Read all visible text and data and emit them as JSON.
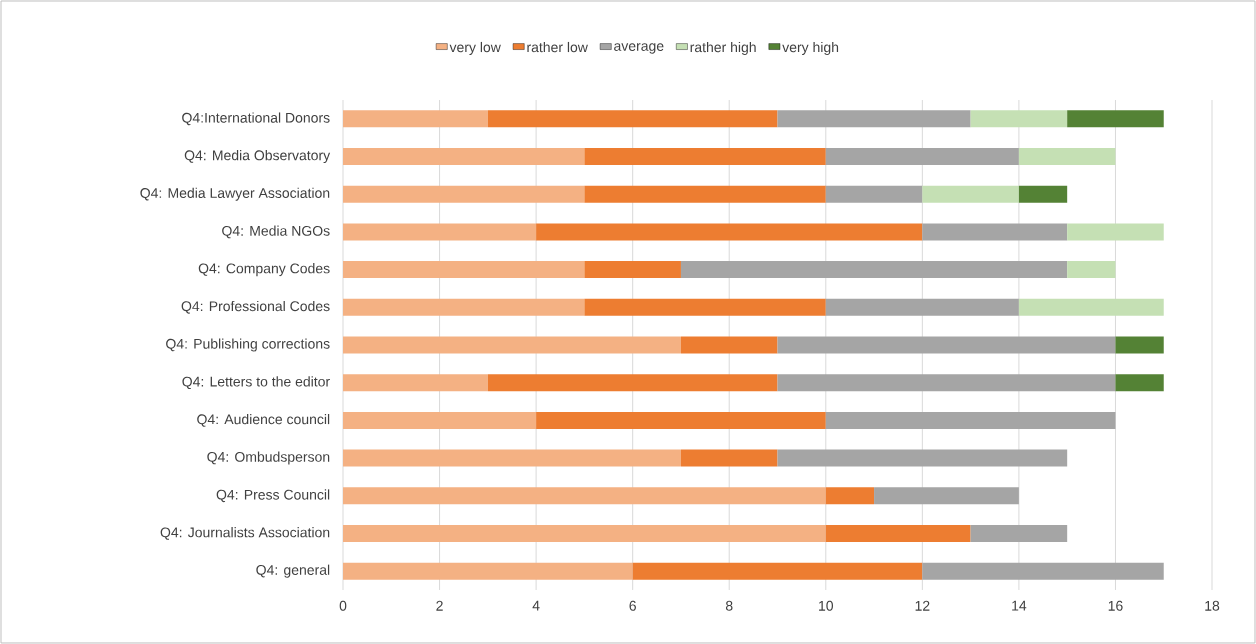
{
  "chart_data": {
    "type": "bar",
    "orientation": "horizontal",
    "stacked": true,
    "categories": [
      "Q4:International Donors",
      "Q4: Media Observatory",
      "Q4: Media Lawyer Association",
      "Q4: Media NGOs",
      "Q4: Company Codes",
      "Q4: Professional Codes",
      "Q4: Publishing corrections",
      "Q4: Letters to the editor",
      "Q4: Audience council",
      "Q4: Ombudsperson",
      "Q4: Press Council",
      "Q4: Journalists Association",
      "Q4: general"
    ],
    "series": [
      {
        "name": "very low",
        "color": "#f4b183",
        "values": [
          3,
          5,
          5,
          4,
          5,
          5,
          7,
          3,
          4,
          7,
          10,
          10,
          6
        ]
      },
      {
        "name": "rather low",
        "color": "#ed7d31",
        "values": [
          6,
          5,
          5,
          8,
          2,
          5,
          2,
          6,
          6,
          2,
          1,
          3,
          6
        ]
      },
      {
        "name": "average",
        "color": "#a5a5a5",
        "values": [
          4,
          4,
          2,
          3,
          8,
          4,
          7,
          7,
          6,
          6,
          3,
          2,
          5
        ]
      },
      {
        "name": "rather high",
        "color": "#c5e0b4",
        "values": [
          2,
          2,
          2,
          2,
          1,
          3,
          0,
          0,
          0,
          0,
          0,
          0,
          0
        ]
      },
      {
        "name": "very high",
        "color": "#548235",
        "values": [
          2,
          0,
          1,
          0,
          0,
          0,
          1,
          1,
          0,
          0,
          0,
          0,
          0
        ]
      }
    ],
    "xlim": [
      0,
      18
    ],
    "xticks": [
      0,
      2,
      4,
      6,
      8,
      10,
      12,
      14,
      16,
      18
    ],
    "grid": "x",
    "legend": "top"
  }
}
